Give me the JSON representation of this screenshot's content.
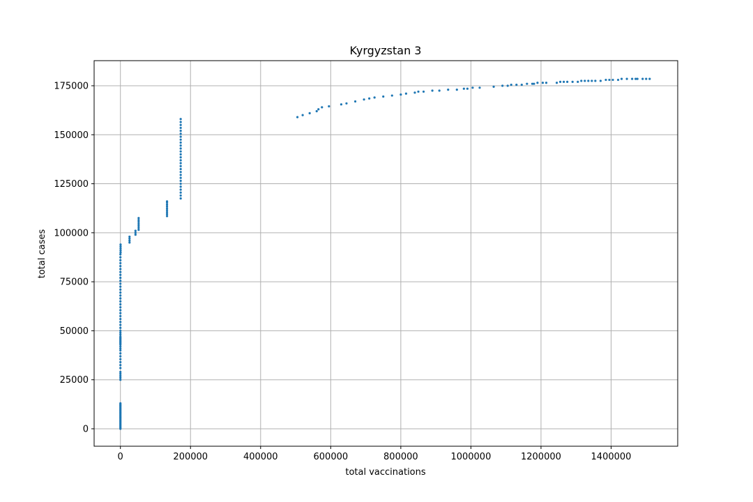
{
  "chart_data": {
    "type": "scatter",
    "title": "Kyrgyzstan 3",
    "xlabel": "total vaccinations",
    "ylabel": "total cases",
    "xlim": [
      -75000,
      1590000
    ],
    "ylim": [
      -8900,
      187800
    ],
    "x_ticks": [
      0,
      200000,
      400000,
      600000,
      800000,
      1000000,
      1200000,
      1400000
    ],
    "x_tick_labels": [
      "0",
      "200000",
      "400000",
      "600000",
      "800000",
      "1000000",
      "1200000",
      "1400000"
    ],
    "y_ticks": [
      0,
      25000,
      50000,
      75000,
      100000,
      125000,
      150000,
      175000
    ],
    "y_tick_labels": [
      "0",
      "25000",
      "50000",
      "75000",
      "100000",
      "125000",
      "150000",
      "175000"
    ],
    "grid": true,
    "marker_color": "#1f77b4",
    "series": [
      {
        "points": [
          [
            0,
            0
          ],
          [
            0,
            500
          ],
          [
            0,
            1000
          ],
          [
            0,
            1500
          ],
          [
            0,
            2000
          ],
          [
            0,
            2500
          ],
          [
            0,
            3000
          ],
          [
            0,
            3500
          ],
          [
            0,
            4000
          ],
          [
            0,
            4500
          ],
          [
            0,
            5000
          ],
          [
            0,
            5500
          ],
          [
            0,
            6000
          ],
          [
            0,
            6500
          ],
          [
            0,
            7000
          ],
          [
            0,
            7500
          ],
          [
            0,
            8000
          ],
          [
            0,
            8500
          ],
          [
            0,
            9000
          ],
          [
            0,
            9500
          ],
          [
            0,
            10000
          ],
          [
            0,
            10500
          ],
          [
            0,
            11000
          ],
          [
            0,
            11500
          ],
          [
            0,
            12000
          ],
          [
            0,
            12500
          ],
          [
            0,
            13000
          ],
          [
            0,
            25000
          ],
          [
            0,
            26000
          ],
          [
            0,
            27000
          ],
          [
            0,
            28000
          ],
          [
            0,
            29000
          ],
          [
            0,
            31000
          ],
          [
            0,
            32500
          ],
          [
            0,
            34000
          ],
          [
            0,
            35500
          ],
          [
            0,
            37000
          ],
          [
            0,
            38500
          ],
          [
            0,
            40000
          ],
          [
            0,
            41000
          ],
          [
            0,
            42000
          ],
          [
            0,
            43000
          ],
          [
            0,
            43500
          ],
          [
            0,
            44000
          ],
          [
            0,
            44500
          ],
          [
            0,
            45000
          ],
          [
            0,
            45500
          ],
          [
            0,
            46000
          ],
          [
            0,
            46500
          ],
          [
            0,
            47000
          ],
          [
            0,
            48000
          ],
          [
            0,
            49000
          ],
          [
            0,
            50000
          ],
          [
            0,
            51500
          ],
          [
            0,
            53000
          ],
          [
            0,
            54500
          ],
          [
            0,
            56000
          ],
          [
            0,
            57500
          ],
          [
            0,
            59000
          ],
          [
            0,
            60500
          ],
          [
            0,
            62000
          ],
          [
            0,
            63500
          ],
          [
            0,
            65000
          ],
          [
            0,
            66500
          ],
          [
            0,
            68000
          ],
          [
            0,
            69500
          ],
          [
            0,
            71000
          ],
          [
            0,
            72500
          ],
          [
            0,
            74000
          ],
          [
            0,
            75500
          ],
          [
            0,
            77000
          ],
          [
            0,
            78500
          ],
          [
            0,
            80000
          ],
          [
            0,
            81500
          ],
          [
            0,
            83000
          ],
          [
            0,
            84500
          ],
          [
            0,
            86000
          ],
          [
            0,
            87500
          ],
          [
            0,
            89000
          ],
          [
            500,
            90000
          ],
          [
            500,
            91000
          ],
          [
            500,
            92000
          ],
          [
            500,
            93000
          ],
          [
            500,
            94000
          ],
          [
            26000,
            95000
          ],
          [
            26000,
            96000
          ],
          [
            26000,
            97000
          ],
          [
            26000,
            98000
          ],
          [
            43000,
            99000
          ],
          [
            43000,
            100000
          ],
          [
            43000,
            101000
          ],
          [
            52000,
            101500
          ],
          [
            52000,
            102500
          ],
          [
            52000,
            103500
          ],
          [
            52000,
            104500
          ],
          [
            52000,
            105500
          ],
          [
            52000,
            106500
          ],
          [
            52000,
            107500
          ],
          [
            133000,
            108500
          ],
          [
            133000,
            109500
          ],
          [
            133000,
            110500
          ],
          [
            133000,
            111500
          ],
          [
            133000,
            112500
          ],
          [
            133000,
            113500
          ],
          [
            133000,
            114500
          ],
          [
            133000,
            115500
          ],
          [
            133000,
            116000
          ],
          [
            172000,
            117500
          ],
          [
            172000,
            119000
          ],
          [
            172000,
            120500
          ],
          [
            172000,
            122000
          ],
          [
            172000,
            123500
          ],
          [
            172000,
            125000
          ],
          [
            172000,
            126500
          ],
          [
            172000,
            128000
          ],
          [
            172000,
            129500
          ],
          [
            172000,
            131000
          ],
          [
            172000,
            132500
          ],
          [
            172000,
            134000
          ],
          [
            172000,
            135500
          ],
          [
            172000,
            137000
          ],
          [
            172000,
            138500
          ],
          [
            172000,
            140000
          ],
          [
            172000,
            141500
          ],
          [
            172000,
            143000
          ],
          [
            172000,
            144500
          ],
          [
            172000,
            146000
          ],
          [
            172000,
            147500
          ],
          [
            172000,
            149000
          ],
          [
            172000,
            150500
          ],
          [
            172000,
            152000
          ],
          [
            172000,
            153500
          ],
          [
            172000,
            155000
          ],
          [
            172000,
            156500
          ],
          [
            172000,
            158000
          ],
          [
            505000,
            159000
          ],
          [
            520000,
            160000
          ],
          [
            540000,
            161000
          ],
          [
            560000,
            162000
          ],
          [
            565000,
            163000
          ],
          [
            575000,
            164000
          ],
          [
            595000,
            164500
          ],
          [
            630000,
            165500
          ],
          [
            645000,
            166000
          ],
          [
            670000,
            167000
          ],
          [
            695000,
            168000
          ],
          [
            710000,
            168500
          ],
          [
            725000,
            169000
          ],
          [
            750000,
            169500
          ],
          [
            775000,
            170000
          ],
          [
            800000,
            170500
          ],
          [
            815000,
            171000
          ],
          [
            840000,
            171500
          ],
          [
            850000,
            172000
          ],
          [
            865000,
            172000
          ],
          [
            890000,
            172500
          ],
          [
            910000,
            172500
          ],
          [
            935000,
            173000
          ],
          [
            960000,
            173000
          ],
          [
            980000,
            173500
          ],
          [
            990000,
            173500
          ],
          [
            1005000,
            174000
          ],
          [
            1025000,
            174000
          ],
          [
            1065000,
            174500
          ],
          [
            1090000,
            175000
          ],
          [
            1105000,
            175000
          ],
          [
            1115000,
            175500
          ],
          [
            1130000,
            175500
          ],
          [
            1145000,
            175500
          ],
          [
            1160000,
            176000
          ],
          [
            1175000,
            176000
          ],
          [
            1180000,
            176000
          ],
          [
            1190000,
            176500
          ],
          [
            1205000,
            176500
          ],
          [
            1215000,
            176500
          ],
          [
            1245000,
            176500
          ],
          [
            1255000,
            177000
          ],
          [
            1265000,
            177000
          ],
          [
            1275000,
            177000
          ],
          [
            1290000,
            177000
          ],
          [
            1305000,
            177000
          ],
          [
            1315000,
            177500
          ],
          [
            1325000,
            177500
          ],
          [
            1335000,
            177500
          ],
          [
            1345000,
            177500
          ],
          [
            1355000,
            177500
          ],
          [
            1370000,
            177500
          ],
          [
            1385000,
            178000
          ],
          [
            1395000,
            178000
          ],
          [
            1405000,
            178000
          ],
          [
            1420000,
            178000
          ],
          [
            1430000,
            178500
          ],
          [
            1445000,
            178500
          ],
          [
            1460000,
            178500
          ],
          [
            1470000,
            178500
          ],
          [
            1475000,
            178500
          ],
          [
            1490000,
            178500
          ],
          [
            1500000,
            178500
          ],
          [
            1510000,
            178500
          ]
        ]
      }
    ]
  }
}
